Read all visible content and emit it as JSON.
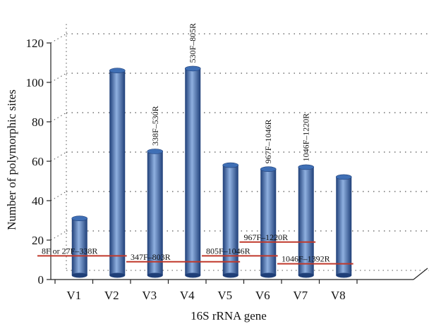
{
  "colors": {
    "bar_main": "#3f6fb5",
    "bar_light": "#8fb0e0",
    "bar_dark": "#1f3f78",
    "region_line": "#c0392b",
    "grid_dot": "#555555",
    "axis": "#222222"
  },
  "chart_data": {
    "type": "bar",
    "title": "",
    "xlabel": "16S rRNA gene",
    "ylabel": "Number of polymorphic sites",
    "ylim": [
      0,
      120
    ],
    "yticks": [
      "0",
      "20",
      "40",
      "60",
      "80",
      "100",
      "120"
    ],
    "grid": "dotted horizontal",
    "categories": [
      "V1",
      "V2",
      "V3",
      "V4",
      "V5",
      "V6",
      "V7",
      "V8"
    ],
    "values": [
      31,
      106,
      65,
      107,
      58,
      56,
      57,
      52
    ],
    "bar_labels": [
      "",
      "",
      "338F–530R",
      "530F–805R",
      "",
      "967F–1046R",
      "1046F–1220R",
      ""
    ],
    "regions": [
      {
        "label": "8F or 27F–338R",
        "start_category": "V1",
        "end_category": "V2",
        "value": 12
      },
      {
        "label": "347F–803R",
        "start_category": "V3",
        "end_category": "V5",
        "value": 9
      },
      {
        "label": "805F–1046R",
        "start_category": "V5",
        "end_category": "V6",
        "value": 12
      },
      {
        "label": "967F–1220R",
        "start_category": "V6",
        "end_category": "V7",
        "value": 19
      },
      {
        "label": "1046F–1392R",
        "start_category": "V7",
        "end_category": "V8",
        "value": 8
      }
    ]
  }
}
